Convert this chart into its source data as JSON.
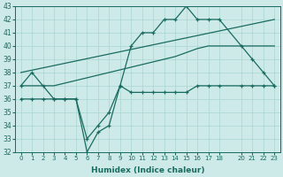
{
  "xlabel": "Humidex (Indice chaleur)",
  "ylabel": "",
  "background_color": "#cdeae8",
  "grid_color": "#a8d5d0",
  "line_color": "#1a6b60",
  "ylim": [
    32,
    43
  ],
  "xlim": [
    -0.5,
    23.5
  ],
  "yticks": [
    32,
    33,
    34,
    35,
    36,
    37,
    38,
    39,
    40,
    41,
    42,
    43
  ],
  "xticks": [
    0,
    1,
    2,
    3,
    4,
    5,
    6,
    7,
    8,
    9,
    10,
    11,
    12,
    13,
    14,
    15,
    16,
    17,
    18,
    20,
    21,
    22,
    23
  ],
  "line1_x": [
    0,
    1,
    2,
    3,
    4,
    5,
    6,
    7,
    8,
    9,
    10,
    11,
    12,
    13,
    14,
    15,
    16,
    17,
    18,
    20,
    21,
    22,
    23
  ],
  "line1_y": [
    37,
    38,
    37,
    36,
    36,
    36,
    33,
    34,
    35,
    37,
    40,
    41,
    41,
    42,
    42,
    43,
    42,
    42,
    42,
    40,
    39,
    38,
    37
  ],
  "line1_marker": true,
  "line2_x": [
    0,
    23
  ],
  "line2_y": [
    38,
    42
  ],
  "line2_marker": false,
  "line3_x": [
    0,
    1,
    2,
    3,
    4,
    5,
    6,
    7,
    8,
    9,
    10,
    11,
    12,
    13,
    14,
    15,
    16,
    17,
    18,
    20,
    21,
    22,
    23
  ],
  "line3_y": [
    37,
    37,
    37,
    37,
    37.2,
    37.4,
    37.6,
    37.8,
    38,
    38.2,
    38.4,
    38.6,
    38.8,
    39,
    39.2,
    39.5,
    39.8,
    40,
    40,
    40,
    40,
    40,
    40
  ],
  "line3_marker": false,
  "line4_x": [
    0,
    1,
    2,
    3,
    4,
    5,
    6,
    7,
    8,
    9,
    10,
    11,
    12,
    13,
    14,
    15,
    16,
    17,
    18,
    20,
    21,
    22,
    23
  ],
  "line4_y": [
    36,
    36,
    36,
    36,
    36,
    36,
    32,
    33.5,
    34,
    37,
    36.5,
    36.5,
    36.5,
    36.5,
    36.5,
    36.5,
    37,
    37,
    37,
    37,
    37,
    37,
    37
  ],
  "line4_marker": true
}
